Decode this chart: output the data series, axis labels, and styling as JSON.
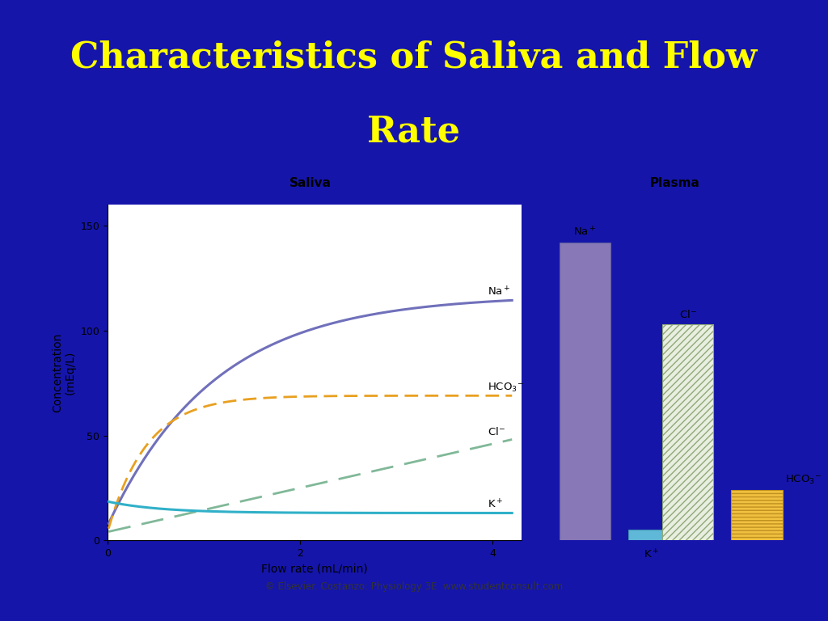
{
  "title_line1": "Characteristics of Saliva and Flow",
  "title_line2": "Rate",
  "title_color": "#FFFF00",
  "title_bg_color": "#1515AA",
  "content_bg_color": "#d4e8f5",
  "plot_bg_color": "#ffffff",
  "saliva_title": "Saliva",
  "plasma_title": "Plasma",
  "xlabel": "Flow rate (mL/min)",
  "ylabel": "Concentration\n(mEq/L)",
  "xlim": [
    0,
    4.3
  ],
  "ylim": [
    0,
    160
  ],
  "yticks": [
    0,
    50,
    100,
    150
  ],
  "xticks": [
    0,
    2,
    4
  ],
  "copyright": "© Elsevier. Costanzo: Physiology 3E  www.studentconsult.com",
  "na_line_color": "#7070bb",
  "hco3_line_color": "#e8a020",
  "cl_line_color": "#80b898",
  "k_line_color": "#30b0c8",
  "plasma_na_color": "#8878b8",
  "plasma_k_color": "#60b8d8",
  "plasma_cl_facecolor": "#e8efe0",
  "plasma_cl_edgecolor": "#90a878",
  "plasma_hco3_facecolor": "#f0c040",
  "plasma_hco3_edgecolor": "#c09020",
  "plasma_na_val": 142,
  "plasma_k_val": 5,
  "plasma_cl_val": 103,
  "plasma_hco3_val": 24,
  "title_fontsize": 32,
  "subtitle_fontsize": 11,
  "label_fontsize": 10,
  "axis_fontsize": 10
}
